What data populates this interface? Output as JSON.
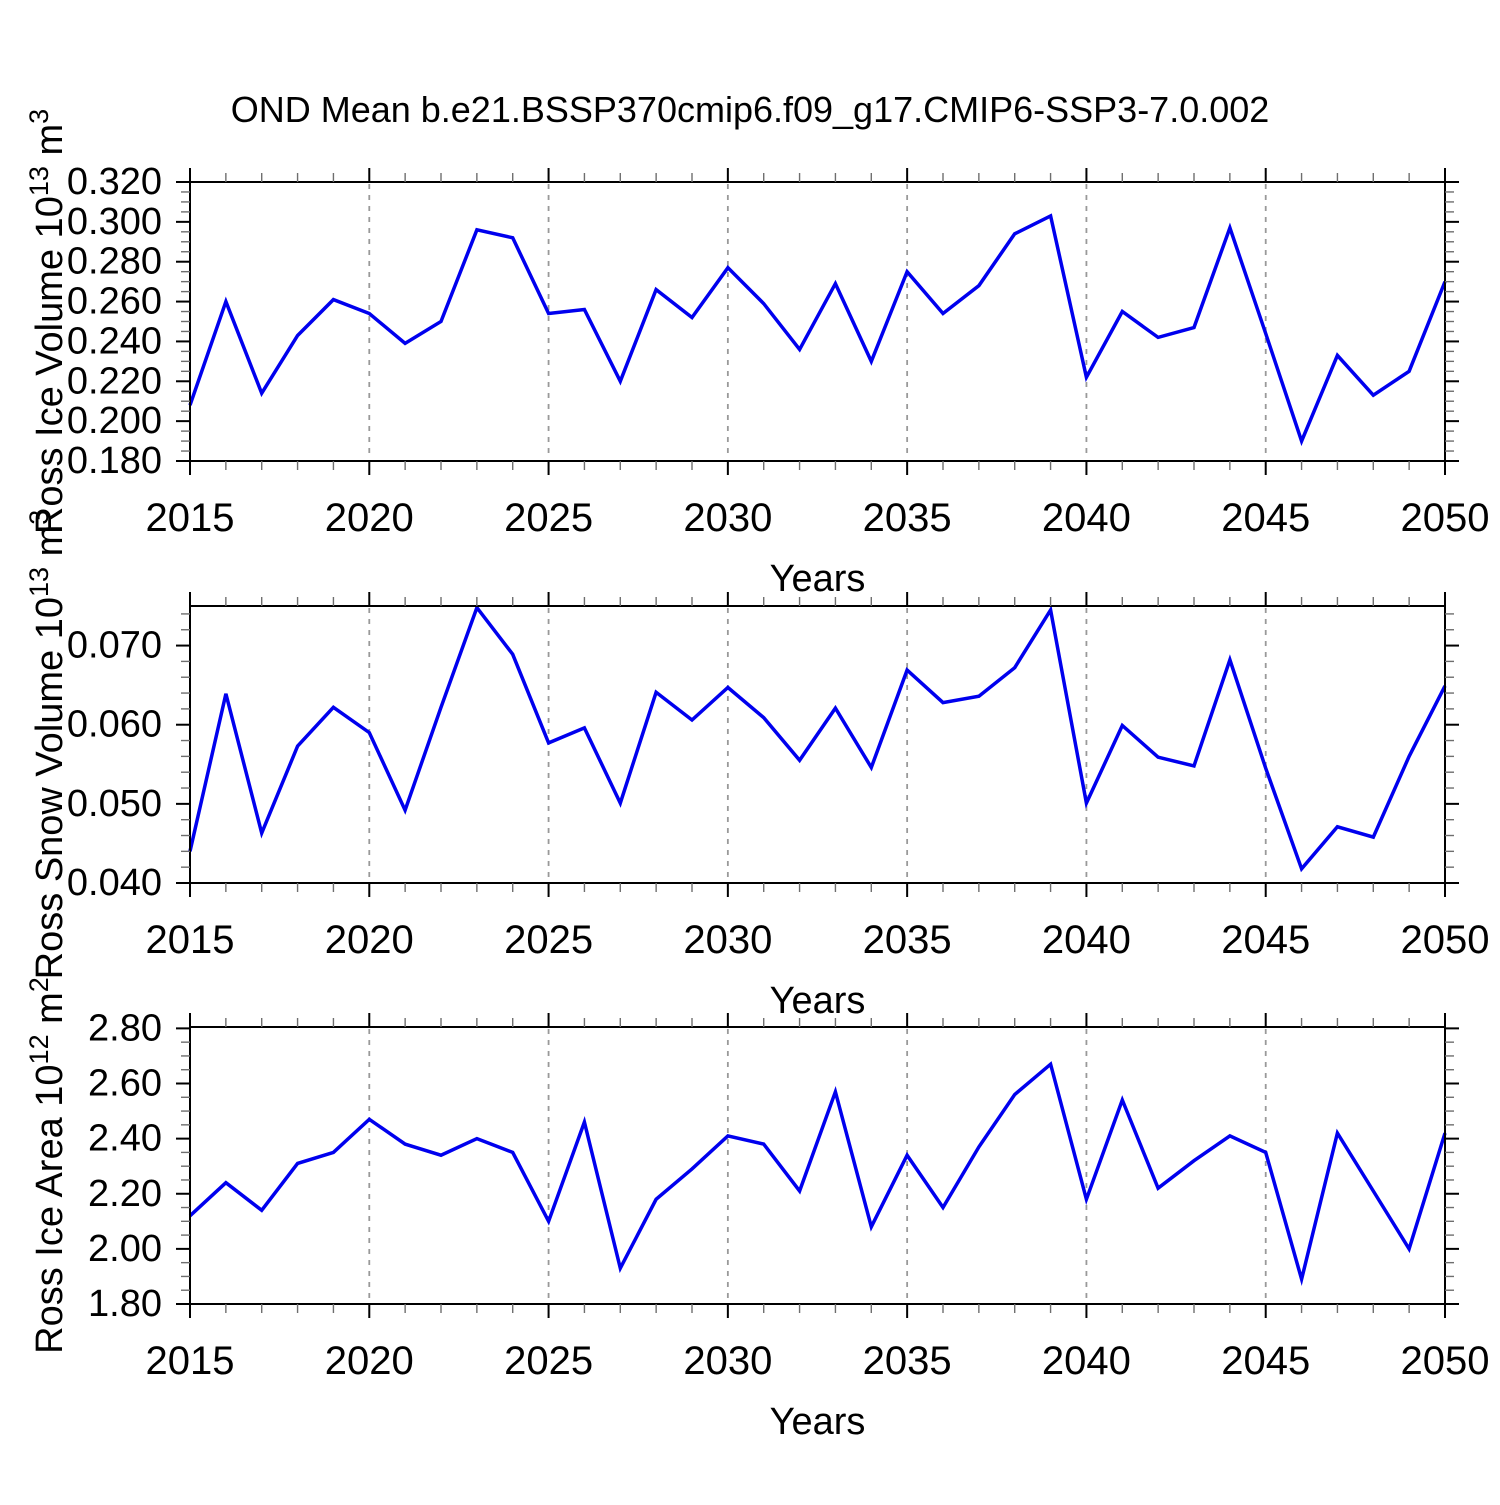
{
  "title": "OND Mean b.e21.BSSP370cmip6.f09_g17.CMIP6-SSP3-7.0.002",
  "colors": {
    "line": "#0000EE",
    "grid": "#999999",
    "axis": "#000000",
    "minor_tick": "#6e6e6e"
  },
  "x_axis": {
    "label": "Years",
    "start": 2015,
    "end": 2050,
    "major_step": 5,
    "minor_step": 1,
    "major_tick_labels": [
      "2015",
      "2020",
      "2025",
      "2030",
      "2035",
      "2040",
      "2045",
      "2050"
    ],
    "gridline_years": [
      2020,
      2025,
      2030,
      2035,
      2040,
      2045
    ],
    "years": [
      2015,
      2016,
      2017,
      2018,
      2019,
      2020,
      2021,
      2022,
      2023,
      2024,
      2025,
      2026,
      2027,
      2028,
      2029,
      2030,
      2031,
      2032,
      2033,
      2034,
      2035,
      2036,
      2037,
      2038,
      2039,
      2040,
      2041,
      2042,
      2043,
      2044,
      2045,
      2046,
      2047,
      2048,
      2049,
      2050
    ]
  },
  "chart_data": [
    {
      "type": "line",
      "name": "ross-ice-volume",
      "ylabel": "Ross Ice Volume 10^13 m^3",
      "ylabel_parts": {
        "base": "Ross Ice Volume 10",
        "sup1": "13",
        "mid": " m",
        "sup2": "3"
      },
      "xlabel": "Years",
      "ylim": [
        0.18,
        0.32
      ],
      "ymajor_step": 0.02,
      "yminor_step": 0.005,
      "ytick_labels": [
        "0.180",
        "0.200",
        "0.220",
        "0.240",
        "0.260",
        "0.280",
        "0.300",
        "0.320"
      ],
      "ytick_values": [
        0.18,
        0.2,
        0.22,
        0.24,
        0.26,
        0.28,
        0.3,
        0.32
      ],
      "values": [
        0.208,
        0.26,
        0.214,
        0.243,
        0.261,
        0.254,
        0.239,
        0.25,
        0.296,
        0.292,
        0.254,
        0.256,
        0.22,
        0.266,
        0.252,
        0.277,
        0.259,
        0.236,
        0.269,
        0.23,
        0.275,
        0.254,
        0.268,
        0.294,
        0.303,
        0.222,
        0.255,
        0.242,
        0.247,
        0.297,
        0.244,
        0.19,
        0.233,
        0.213,
        0.225,
        0.27
      ]
    },
    {
      "type": "line",
      "name": "ross-snow-volume",
      "ylabel": "Ross Snow Volume 10^13 m^3",
      "ylabel_parts": {
        "base": "Ross Snow Volume 10",
        "sup1": "13",
        "mid": " m",
        "sup2": "3"
      },
      "xlabel": "Years",
      "ylim": [
        0.04,
        0.075
      ],
      "ymajor_step": 0.01,
      "yminor_step": 0.002,
      "ytick_labels": [
        "0.040",
        "0.050",
        "0.060",
        "0.070"
      ],
      "ytick_values": [
        0.04,
        0.05,
        0.06,
        0.07
      ],
      "values": [
        0.044,
        0.0639,
        0.0463,
        0.0573,
        0.0622,
        0.059,
        0.0492,
        0.0622,
        0.0748,
        0.0689,
        0.0577,
        0.0596,
        0.0501,
        0.0641,
        0.0606,
        0.0647,
        0.0609,
        0.0555,
        0.0621,
        0.0546,
        0.0669,
        0.0628,
        0.0636,
        0.0672,
        0.0745,
        0.0501,
        0.0599,
        0.0559,
        0.0548,
        0.0682,
        0.0545,
        0.0418,
        0.0471,
        0.0458,
        0.056,
        0.0649
      ]
    },
    {
      "type": "line",
      "name": "ross-ice-area",
      "ylabel": "Ross Ice Area 10^12 m^2",
      "ylabel_parts": {
        "base": "Ross Ice Area 10",
        "sup1": "12",
        "mid": " m",
        "sup2": "2"
      },
      "xlabel": "Years",
      "ylim": [
        1.8,
        2.805
      ],
      "ymajor_step": 0.2,
      "yminor_step": 0.05,
      "ytick_labels": [
        "1.80",
        "2.00",
        "2.20",
        "2.40",
        "2.60",
        "2.80"
      ],
      "ytick_values": [
        1.8,
        2.0,
        2.2,
        2.4,
        2.6,
        2.8
      ],
      "values": [
        2.12,
        2.24,
        2.14,
        2.31,
        2.35,
        2.47,
        2.38,
        2.34,
        2.4,
        2.35,
        2.1,
        2.46,
        1.93,
        2.18,
        2.29,
        2.41,
        2.38,
        2.21,
        2.57,
        2.08,
        2.34,
        2.15,
        2.37,
        2.56,
        2.67,
        2.18,
        2.54,
        2.22,
        2.32,
        2.41,
        2.35,
        1.89,
        2.42,
        2.21,
        2.0,
        2.42
      ]
    }
  ]
}
